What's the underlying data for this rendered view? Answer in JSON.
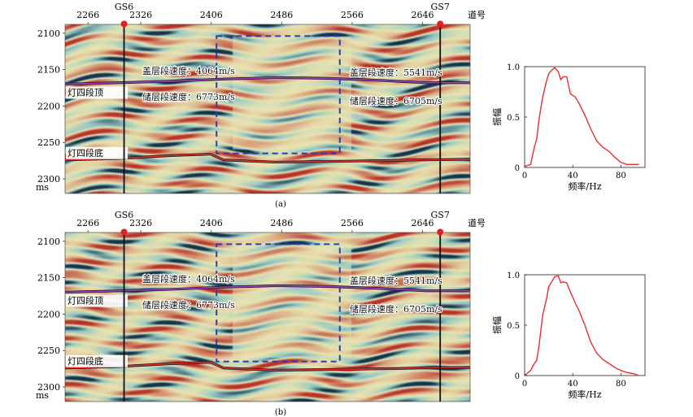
{
  "panels": [
    {
      "caption": "(a)",
      "trace_axis": {
        "ticks": [
          "2266",
          "2326",
          "2406",
          "2486",
          "2566",
          "2646"
        ],
        "label": "道号"
      },
      "time_axis": {
        "ticks": [
          "2100",
          "2150",
          "2200",
          "2250",
          "2300"
        ],
        "unit": "ms"
      },
      "wells": [
        {
          "name": "GS6",
          "trace": 2307
        },
        {
          "name": "GS7",
          "trace": 2666
        }
      ],
      "horizons": [
        {
          "label": "灯四段顶",
          "color": "#a040c0"
        },
        {
          "label": "灯四段底",
          "color": "#e03030"
        }
      ],
      "annotations": [
        {
          "text": "盖层段速度：4064m/s"
        },
        {
          "text": "储层段速度：6773m/s"
        },
        {
          "text": "盖层段速度：5541m/s"
        },
        {
          "text": "储层段速度：6705m/s"
        }
      ],
      "spectrum": {
        "xlabel": "频率/Hz",
        "ylabel": "振幅",
        "xticks": [
          "0",
          "40",
          "80"
        ],
        "yticks": [
          "0",
          "0.5",
          "1.0"
        ]
      }
    },
    {
      "caption": "(b)",
      "trace_axis": {
        "ticks": [
          "2266",
          "2326",
          "2406",
          "2486",
          "2566",
          "2646"
        ],
        "label": "道号"
      },
      "time_axis": {
        "ticks": [
          "2100",
          "2150",
          "2200",
          "2250",
          "2300"
        ],
        "unit": "ms"
      },
      "wells": [
        {
          "name": "GS6",
          "trace": 2307
        },
        {
          "name": "GS7",
          "trace": 2666
        }
      ],
      "horizons": [
        {
          "label": "灯四段顶",
          "color": "#a040c0"
        },
        {
          "label": "灯四段底",
          "color": "#e03030"
        }
      ],
      "annotations": [
        {
          "text": "盖层段速度：4064m/s"
        },
        {
          "text": "储层段速度：6773m/s"
        },
        {
          "text": "盖层段速度：5541m/s"
        },
        {
          "text": "储层段速度：6705m/s"
        }
      ],
      "spectrum": {
        "xlabel": "频率/Hz",
        "ylabel": "振幅",
        "xticks": [
          "0",
          "40",
          "80"
        ],
        "yticks": [
          "0",
          "0.5",
          "1.0"
        ]
      }
    }
  ],
  "chart_data": [
    {
      "type": "heatmap",
      "title": "(a)",
      "xlabel": "道号",
      "ylabel": "ms",
      "xlim": [
        2240,
        2700
      ],
      "ylim": [
        2320,
        2088
      ],
      "xticks": [
        2266,
        2326,
        2406,
        2486,
        2566,
        2646
      ],
      "yticks": [
        2100,
        2150,
        2200,
        2250,
        2300
      ],
      "colors": {
        "peak": "#b8342a",
        "neutral": "#e8e3b0",
        "trough": "#1a3348"
      },
      "wells": [
        {
          "name": "GS6",
          "trace": 2307
        },
        {
          "name": "GS7",
          "trace": 2666
        }
      ],
      "horizons": [
        {
          "name": "灯四段顶",
          "x": [
            2240,
            2300,
            2360,
            2420,
            2480,
            2540,
            2600,
            2650,
            2700
          ],
          "y": [
            2170,
            2168,
            2166,
            2163,
            2161,
            2162,
            2165,
            2168,
            2168
          ]
        },
        {
          "name": "灯四段底",
          "x": [
            2240,
            2300,
            2360,
            2405,
            2420,
            2480,
            2540,
            2600,
            2640,
            2700
          ],
          "y": [
            2274,
            2272,
            2268,
            2266,
            2274,
            2277,
            2276,
            2275,
            2274,
            2273
          ]
        }
      ],
      "box": {
        "x": [
          2412,
          2552
        ],
        "y": [
          2104,
          2265
        ]
      }
    },
    {
      "type": "line",
      "title": "(a)",
      "xlabel": "频率/Hz",
      "ylabel": "振幅",
      "xlim": [
        0,
        100
      ],
      "ylim": [
        0,
        1.0
      ],
      "series": [
        {
          "x": [
            0,
            5,
            8,
            10,
            12,
            15,
            18,
            20,
            22,
            25,
            28,
            30,
            32,
            35,
            38,
            42,
            45,
            50,
            55,
            60,
            65,
            70,
            75,
            80,
            85,
            90,
            95
          ],
          "y": [
            0.01,
            0.03,
            0.2,
            0.28,
            0.48,
            0.7,
            0.85,
            0.93,
            0.96,
            0.99,
            0.95,
            0.87,
            0.9,
            0.9,
            0.73,
            0.7,
            0.64,
            0.52,
            0.38,
            0.26,
            0.2,
            0.16,
            0.1,
            0.05,
            0.03,
            0.03,
            0.03
          ]
        }
      ]
    },
    {
      "type": "heatmap",
      "title": "(b)",
      "xlabel": "道号",
      "ylabel": "ms",
      "xlim": [
        2240,
        2700
      ],
      "ylim": [
        2320,
        2088
      ],
      "xticks": [
        2266,
        2326,
        2406,
        2486,
        2566,
        2646
      ],
      "yticks": [
        2100,
        2150,
        2200,
        2250,
        2300
      ],
      "colors": {
        "peak": "#b8342a",
        "neutral": "#e8e3b0",
        "trough": "#1a3348"
      },
      "wells": [
        {
          "name": "GS6",
          "trace": 2307
        },
        {
          "name": "GS7",
          "trace": 2666
        }
      ],
      "horizons": [
        {
          "name": "灯四段顶",
          "x": [
            2240,
            2300,
            2360,
            2420,
            2480,
            2540,
            2600,
            2650,
            2700
          ],
          "y": [
            2170,
            2168,
            2166,
            2163,
            2161,
            2162,
            2165,
            2168,
            2168
          ]
        },
        {
          "name": "灯四段底",
          "x": [
            2240,
            2300,
            2360,
            2405,
            2420,
            2480,
            2540,
            2600,
            2640,
            2700
          ],
          "y": [
            2274,
            2272,
            2268,
            2266,
            2274,
            2277,
            2276,
            2275,
            2274,
            2273
          ]
        }
      ],
      "box": {
        "x": [
          2412,
          2552
        ],
        "y": [
          2104,
          2265
        ]
      }
    },
    {
      "type": "line",
      "title": "(b)",
      "xlabel": "频率/Hz",
      "ylabel": "振幅",
      "xlim": [
        0,
        100
      ],
      "ylim": [
        0,
        1.0
      ],
      "series": [
        {
          "x": [
            0,
            5,
            8,
            10,
            12,
            15,
            18,
            20,
            22,
            25,
            28,
            30,
            32,
            35,
            38,
            42,
            45,
            50,
            55,
            60,
            65,
            70,
            75,
            80,
            85,
            90,
            95
          ],
          "y": [
            0.0,
            0.05,
            0.12,
            0.15,
            0.3,
            0.6,
            0.75,
            0.88,
            0.92,
            0.98,
            0.99,
            0.92,
            0.93,
            0.92,
            0.83,
            0.72,
            0.65,
            0.5,
            0.33,
            0.22,
            0.16,
            0.12,
            0.08,
            0.05,
            0.03,
            0.02,
            0.0
          ]
        }
      ]
    }
  ]
}
